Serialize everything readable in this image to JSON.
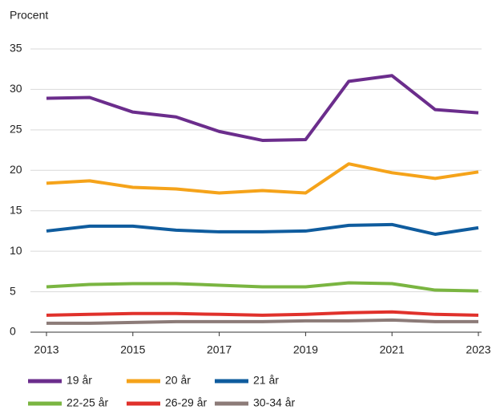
{
  "chart_data": {
    "type": "line",
    "y_label": "Procent",
    "x": [
      2013,
      2014,
      2015,
      2016,
      2017,
      2018,
      2019,
      2020,
      2021,
      2022,
      2023
    ],
    "xlim": [
      2013,
      2023
    ],
    "xticks": [
      2013,
      2015,
      2017,
      2019,
      2021,
      2023
    ],
    "ylim": [
      0,
      35
    ],
    "yticks": [
      0,
      5,
      10,
      15,
      20,
      25,
      30,
      35
    ],
    "grid": true,
    "legend": "bottom",
    "series": [
      {
        "name": "19 år",
        "color": "#6b2d8c",
        "values": [
          28.9,
          29.0,
          27.2,
          26.6,
          24.8,
          23.7,
          23.8,
          31.0,
          31.7,
          27.5,
          27.1
        ]
      },
      {
        "name": "20 år",
        "color": "#f5a31a",
        "values": [
          18.4,
          18.7,
          17.9,
          17.7,
          17.2,
          17.5,
          17.2,
          20.8,
          19.7,
          19.0,
          19.8
        ]
      },
      {
        "name": "21 år",
        "color": "#0f5c9e",
        "values": [
          12.5,
          13.1,
          13.1,
          12.6,
          12.4,
          12.4,
          12.5,
          13.2,
          13.3,
          12.1,
          12.9
        ]
      },
      {
        "name": "22-25 år",
        "color": "#7ab541",
        "values": [
          5.6,
          5.9,
          6.0,
          6.0,
          5.8,
          5.6,
          5.6,
          6.1,
          6.0,
          5.2,
          5.1
        ]
      },
      {
        "name": "26-29 år",
        "color": "#e0312b",
        "values": [
          2.1,
          2.2,
          2.3,
          2.3,
          2.2,
          2.1,
          2.2,
          2.4,
          2.5,
          2.2,
          2.1
        ]
      },
      {
        "name": "30-34 år",
        "color": "#8c7b78",
        "values": [
          1.1,
          1.1,
          1.2,
          1.3,
          1.3,
          1.3,
          1.4,
          1.4,
          1.5,
          1.3,
          1.3
        ]
      }
    ]
  }
}
